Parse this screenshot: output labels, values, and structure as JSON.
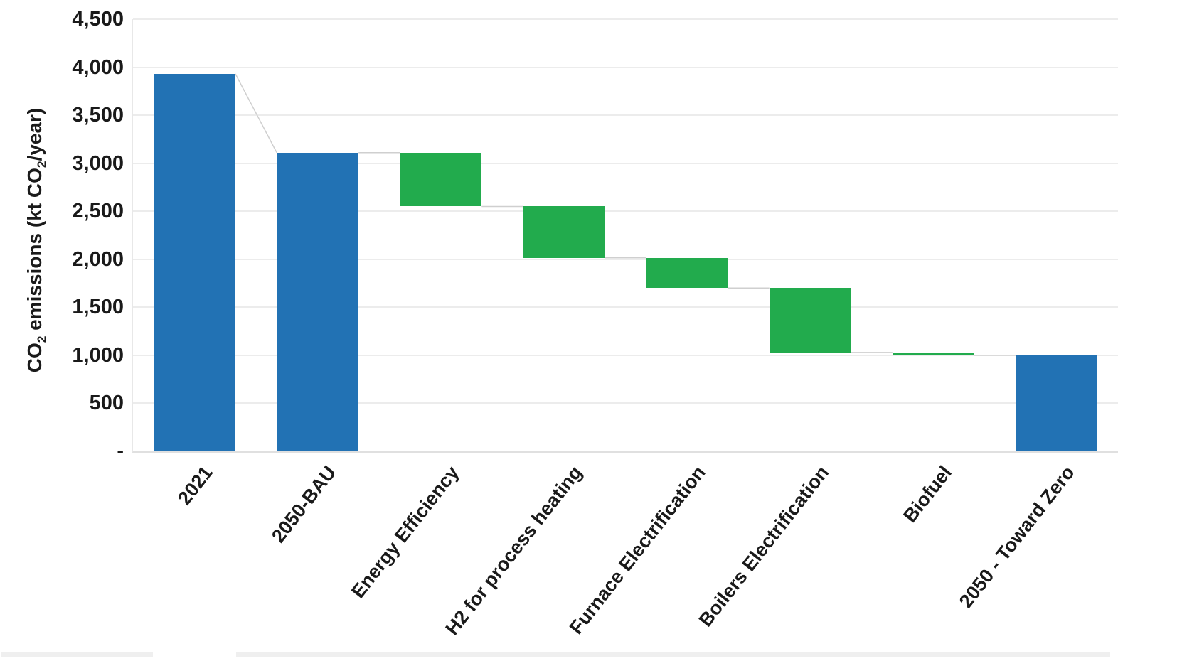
{
  "chart_data": {
    "type": "bar",
    "subtype": "waterfall",
    "title": "",
    "xlabel": "",
    "y_axis_title": {
      "p1": "CO",
      "s1": "2",
      "p2": " emissions (kt CO",
      "s2": "2",
      "p3": "/year)"
    },
    "categories": [
      "2021",
      "2050-BAU",
      "Energy Efficiency",
      "H2 for process heating",
      "Furnace Electrification",
      "Boilers Electrification",
      "Biofuel",
      "2050 - Toward Zero"
    ],
    "bars": [
      {
        "label": "2021",
        "start": 0,
        "end": 3930,
        "delta": 3930,
        "role": "total",
        "color_key": "blue"
      },
      {
        "label": "2050-BAU",
        "start": 0,
        "end": 3110,
        "delta": 3110,
        "role": "total",
        "color_key": "blue"
      },
      {
        "label": "Energy Efficiency",
        "start": 3110,
        "end": 2550,
        "delta": -560,
        "role": "decrease",
        "color_key": "green"
      },
      {
        "label": "H2 for process heating",
        "start": 2550,
        "end": 2015,
        "delta": -535,
        "role": "decrease",
        "color_key": "green"
      },
      {
        "label": "Furnace Electrification",
        "start": 2015,
        "end": 1700,
        "delta": -315,
        "role": "decrease",
        "color_key": "green"
      },
      {
        "label": "Boilers Electrification",
        "start": 1700,
        "end": 1030,
        "delta": -670,
        "role": "decrease",
        "color_key": "green"
      },
      {
        "label": "Biofuel",
        "start": 1030,
        "end": 1000,
        "delta": -30,
        "role": "decrease",
        "color_key": "green"
      },
      {
        "label": "2050 - Toward Zero",
        "start": 0,
        "end": 1000,
        "delta": 1000,
        "role": "total",
        "color_key": "blue"
      }
    ],
    "y_ticks": [
      {
        "value": 0,
        "label": "-"
      },
      {
        "value": 500,
        "label": "500"
      },
      {
        "value": 1000,
        "label": "1,000"
      },
      {
        "value": 1500,
        "label": "1,500"
      },
      {
        "value": 2000,
        "label": "2,000"
      },
      {
        "value": 2500,
        "label": "2,500"
      },
      {
        "value": 3000,
        "label": "3,000"
      },
      {
        "value": 3500,
        "label": "3,500"
      },
      {
        "value": 4000,
        "label": "4,000"
      },
      {
        "value": 4500,
        "label": "4,500"
      }
    ],
    "ylim": [
      0,
      4500
    ],
    "grid": true,
    "legend_position": "none",
    "colors": {
      "blue": "#2272B4",
      "green": "#22AB4D",
      "connector": "#cfcfcf",
      "gridline": "#ececec",
      "axis_text": "#1a1a1a"
    }
  }
}
